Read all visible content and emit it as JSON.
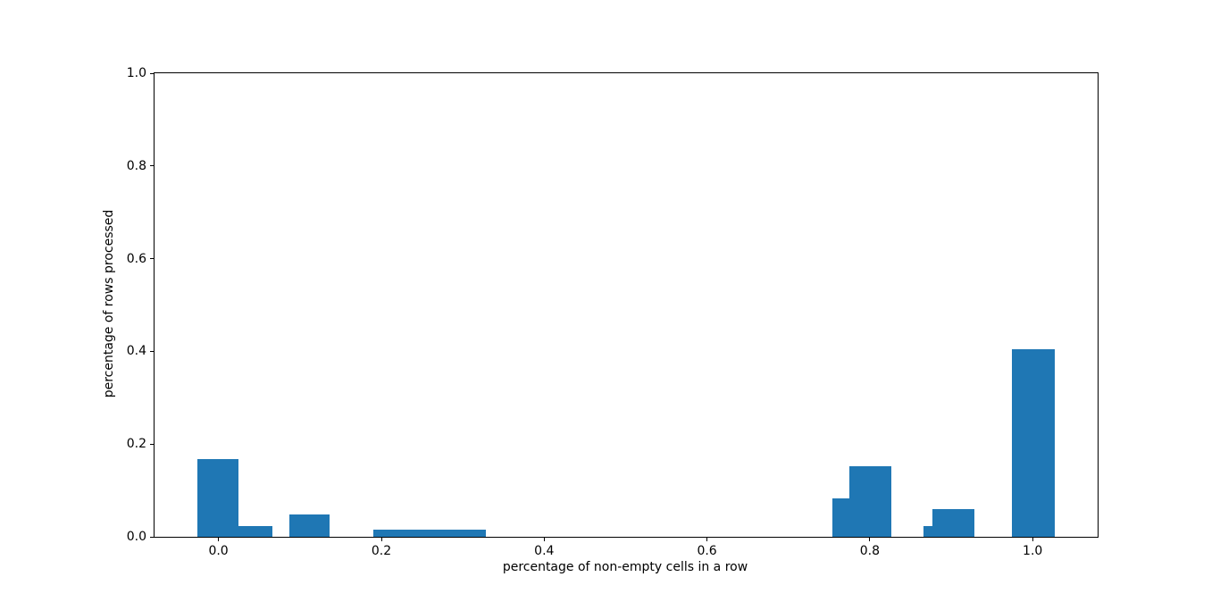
{
  "figure": {
    "background": "#ffffff"
  },
  "chart_data": {
    "type": "bar",
    "subtype": "histogram",
    "title": "",
    "xlabel": "percentage of non-empty cells in a row",
    "ylabel": "percentage of rows processed",
    "xlim": [
      -0.0786,
      1.0799
    ],
    "ylim": [
      0.0,
      1.0
    ],
    "grid": false,
    "legend": null,
    "bar_color": "#1f77b4",
    "axis_color": "#000000",
    "xticks": [
      {
        "value": 0.0,
        "label": "0.0"
      },
      {
        "value": 0.2,
        "label": "0.2"
      },
      {
        "value": 0.4,
        "label": "0.4"
      },
      {
        "value": 0.6,
        "label": "0.6"
      },
      {
        "value": 0.8,
        "label": "0.8"
      },
      {
        "value": 1.0,
        "label": "1.0"
      }
    ],
    "yticks": [
      {
        "value": 0.0,
        "label": "0.0"
      },
      {
        "value": 0.2,
        "label": "0.2"
      },
      {
        "value": 0.4,
        "label": "0.4"
      },
      {
        "value": 0.6,
        "label": "0.6"
      },
      {
        "value": 0.8,
        "label": "0.8"
      },
      {
        "value": 1.0,
        "label": "1.0"
      }
    ],
    "bars": [
      {
        "x_left": -0.026,
        "x_right": 0.025,
        "height": 0.168
      },
      {
        "x_left": 0.025,
        "x_right": 0.066,
        "height": 0.024
      },
      {
        "x_left": 0.087,
        "x_right": 0.136,
        "height": 0.048
      },
      {
        "x_left": 0.19,
        "x_right": 0.329,
        "height": 0.015
      },
      {
        "x_left": 0.754,
        "x_right": 0.775,
        "height": 0.083
      },
      {
        "x_left": 0.775,
        "x_right": 0.826,
        "height": 0.153
      },
      {
        "x_left": 0.866,
        "x_right": 0.877,
        "height": 0.024
      },
      {
        "x_left": 0.877,
        "x_right": 0.928,
        "height": 0.06
      },
      {
        "x_left": 0.975,
        "x_right": 1.027,
        "height": 0.405
      }
    ]
  }
}
